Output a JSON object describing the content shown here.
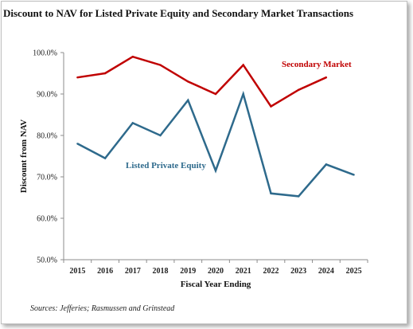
{
  "chart_data": {
    "type": "line",
    "title": "Discount to NAV for Listed Private Equity and Secondary Market Transactions",
    "xlabel": "Fiscal Year Ending",
    "ylabel": "Discount from NAV",
    "source": "Sources: Jefferies; Rasmussen and Grinstead",
    "x": [
      "2015",
      "2016",
      "2017",
      "2018",
      "2019",
      "2020",
      "2021",
      "2022",
      "2023",
      "2024",
      "2025"
    ],
    "ylim": [
      50,
      100
    ],
    "yticks": [
      "100.0%",
      "90.0%",
      "80.0%",
      "70.0%",
      "60.0%",
      "50.0%"
    ],
    "grid": false,
    "series": [
      {
        "name": "Secondary Market",
        "color": "#c00000",
        "values": [
          94,
          95,
          99,
          97,
          93,
          90,
          97,
          87,
          91,
          94,
          null
        ]
      },
      {
        "name": "Listed Private Equity",
        "color": "#2e6a8c",
        "values": [
          78,
          74.5,
          83,
          80,
          88.5,
          71.5,
          90,
          66,
          65.3,
          73,
          70.5
        ]
      }
    ]
  }
}
